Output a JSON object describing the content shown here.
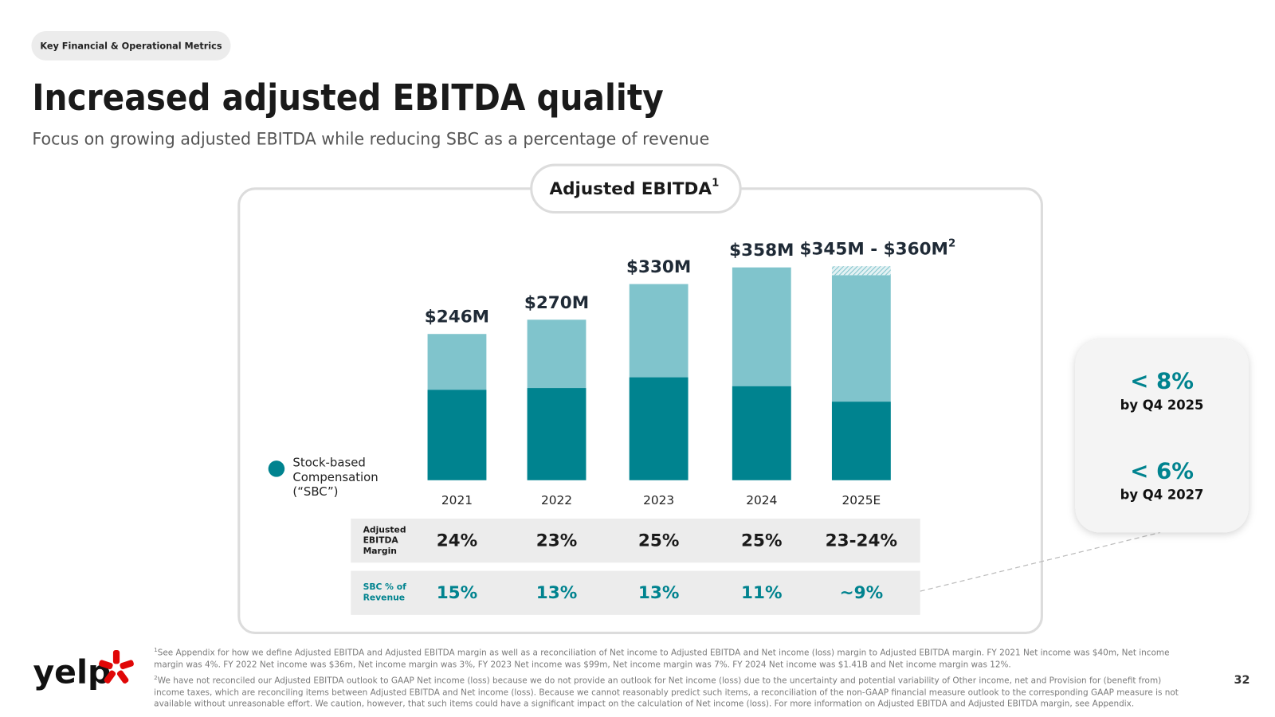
{
  "header": {
    "tag": "Key Financial & Operational Metrics",
    "title": "Increased adjusted EBITDA quality",
    "subtitle": "Focus on growing adjusted EBITDA while reducing SBC as a percentage of revenue"
  },
  "chart_data": {
    "type": "bar",
    "title": "Adjusted EBITDA",
    "title_note": "1",
    "categories": [
      "2021",
      "2022",
      "2023",
      "2024",
      "2025E"
    ],
    "values": [
      246,
      270,
      330,
      358,
      345
    ],
    "value_labels": [
      "$246M",
      "$270M",
      "$330M",
      "$358M",
      "$345M - $360M"
    ],
    "range_high": [
      null,
      null,
      null,
      null,
      360
    ],
    "value_label_notes": [
      null,
      null,
      null,
      null,
      "2"
    ],
    "color": "#80c4cc",
    "series": [
      {
        "name": "Stock-based Compensation (“SBC”)",
        "color": "#00838f",
        "values": [
          152,
          155,
          173,
          158,
          132
        ]
      }
    ]
  },
  "table": {
    "rows": [
      {
        "label": "Adjusted EBITDA Margin",
        "cells": [
          "24%",
          "23%",
          "25%",
          "25%",
          "23-24%"
        ]
      },
      {
        "label": "SBC % of Revenue",
        "cells": [
          "15%",
          "13%",
          "13%",
          "11%",
          "~9%"
        ]
      }
    ]
  },
  "targets": [
    {
      "value": "< 8%",
      "label": "by Q4 2025"
    },
    {
      "value": "< 6%",
      "label": "by Q4 2027"
    }
  ],
  "footnotes": [
    {
      "mark": "1",
      "text": "See Appendix for how we define Adjusted EBITDA and Adjusted EBITDA margin as well as a reconciliation of Net income to Adjusted EBITDA and Net income (loss) margin to Adjusted EBITDA margin. FY 2021 Net income was $40m, Net income margin was 4%. FY 2022 Net income was $36m, Net income margin was 3%, FY 2023 Net income was $99m, Net income margin was 7%. FY 2024 Net income was $1.41B and Net income margin was 12%."
    },
    {
      "mark": "2",
      "text": "We have not reconciled our Adjusted EBITDA outlook to GAAP Net income (loss) because we do not provide an outlook for Net income (loss) due to the uncertainty and potential variability of Other income, net and Provision for (benefit from) income taxes, which are reconciling items between Adjusted EBITDA and Net income (loss). Because we cannot reasonably predict such items, a reconciliation of the non-GAAP financial measure outlook to the corresponding GAAP measure is not available without unreasonable effort. We caution, however, that such items could have a significant impact on the calculation of Net income (loss). For more information on Adjusted EBITDA and Adjusted EBITDA margin, see Appendix."
    }
  ],
  "footer": {
    "logo": "yelp",
    "page": "32"
  }
}
